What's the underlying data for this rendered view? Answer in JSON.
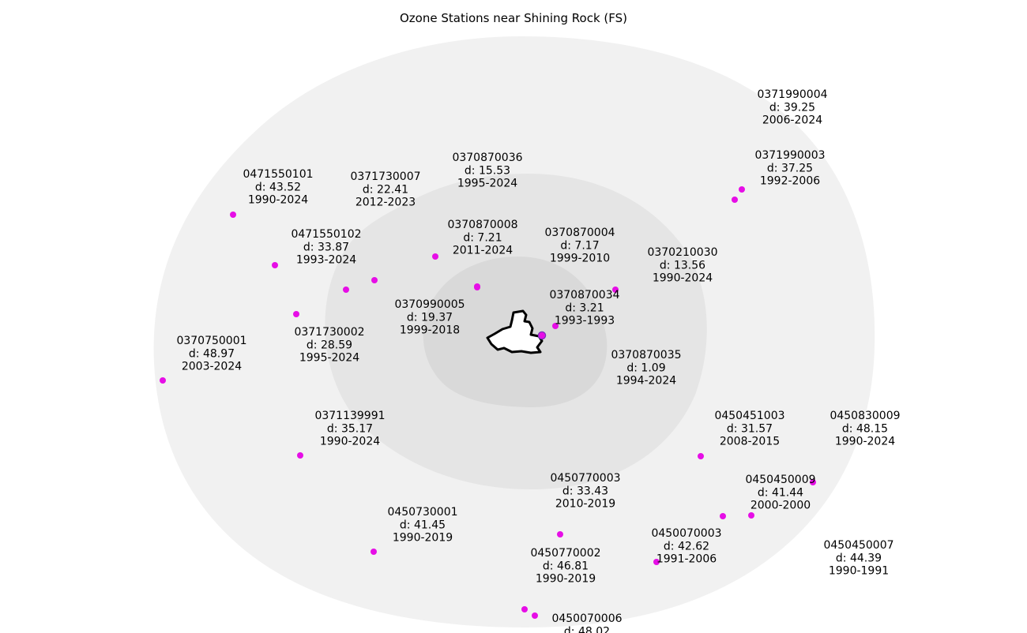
{
  "title": "Ozone Stations near Shining Rock (FS)",
  "colors": {
    "station": "#e60ee6",
    "buffer_outer": "#f1f1f1",
    "buffer_mid": "#e5e5e5",
    "buffer_inner": "#d9d9d9",
    "boundary": "#000000",
    "center_fill": "#2e8b57",
    "center_edge": "#7b2fbe"
  },
  "stations": [
    {
      "id": "0371990004",
      "d": "d: 39.25",
      "years": "2006-2024"
    },
    {
      "id": "0371990003",
      "d": "d: 37.25",
      "years": "1992-2006"
    },
    {
      "id": "0370870036",
      "d": "d: 15.53",
      "years": "1995-2024"
    },
    {
      "id": "0371730007",
      "d": "d: 22.41",
      "years": "2012-2023"
    },
    {
      "id": "0471550101",
      "d": "d: 43.52",
      "years": "1990-2024"
    },
    {
      "id": "0471550102",
      "d": "d: 33.87",
      "years": "1993-2024"
    },
    {
      "id": "0370870008",
      "d": "d: 7.21",
      "years": "2011-2024"
    },
    {
      "id": "0370870004",
      "d": "d: 7.17",
      "years": "1999-2010"
    },
    {
      "id": "0370210030",
      "d": "d: 13.56",
      "years": "1990-2024"
    },
    {
      "id": "0370990005",
      "d": "d: 19.37",
      "years": "1999-2018"
    },
    {
      "id": "0370870034",
      "d": "d: 3.21",
      "years": "1993-1993"
    },
    {
      "id": "0371730002",
      "d": "d: 28.59",
      "years": "1995-2024"
    },
    {
      "id": "0370750001",
      "d": "d: 48.97",
      "years": "2003-2024"
    },
    {
      "id": "0370870035",
      "d": "d: 1.09",
      "years": "1994-2024"
    },
    {
      "id": "0371139991",
      "d": "d: 35.17",
      "years": "1990-2024"
    },
    {
      "id": "0450451003",
      "d": "d: 31.57",
      "years": "2008-2015"
    },
    {
      "id": "0450830009",
      "d": "d: 48.15",
      "years": "1990-2024"
    },
    {
      "id": "0450770003",
      "d": "d: 33.43",
      "years": "2010-2019"
    },
    {
      "id": "0450450009",
      "d": "d: 41.44",
      "years": "2000-2000"
    },
    {
      "id": "0450730001",
      "d": "d: 41.45",
      "years": "1990-2019"
    },
    {
      "id": "0450070003",
      "d": "d: 42.62",
      "years": "1991-2006"
    },
    {
      "id": "0450770002",
      "d": "d: 46.81",
      "years": "1990-2019"
    },
    {
      "id": "0450450007",
      "d": "d: 44.39",
      "years": "1990-1991"
    },
    {
      "id": "0450070006",
      "d": "d: 48.02",
      "years": ""
    }
  ]
}
